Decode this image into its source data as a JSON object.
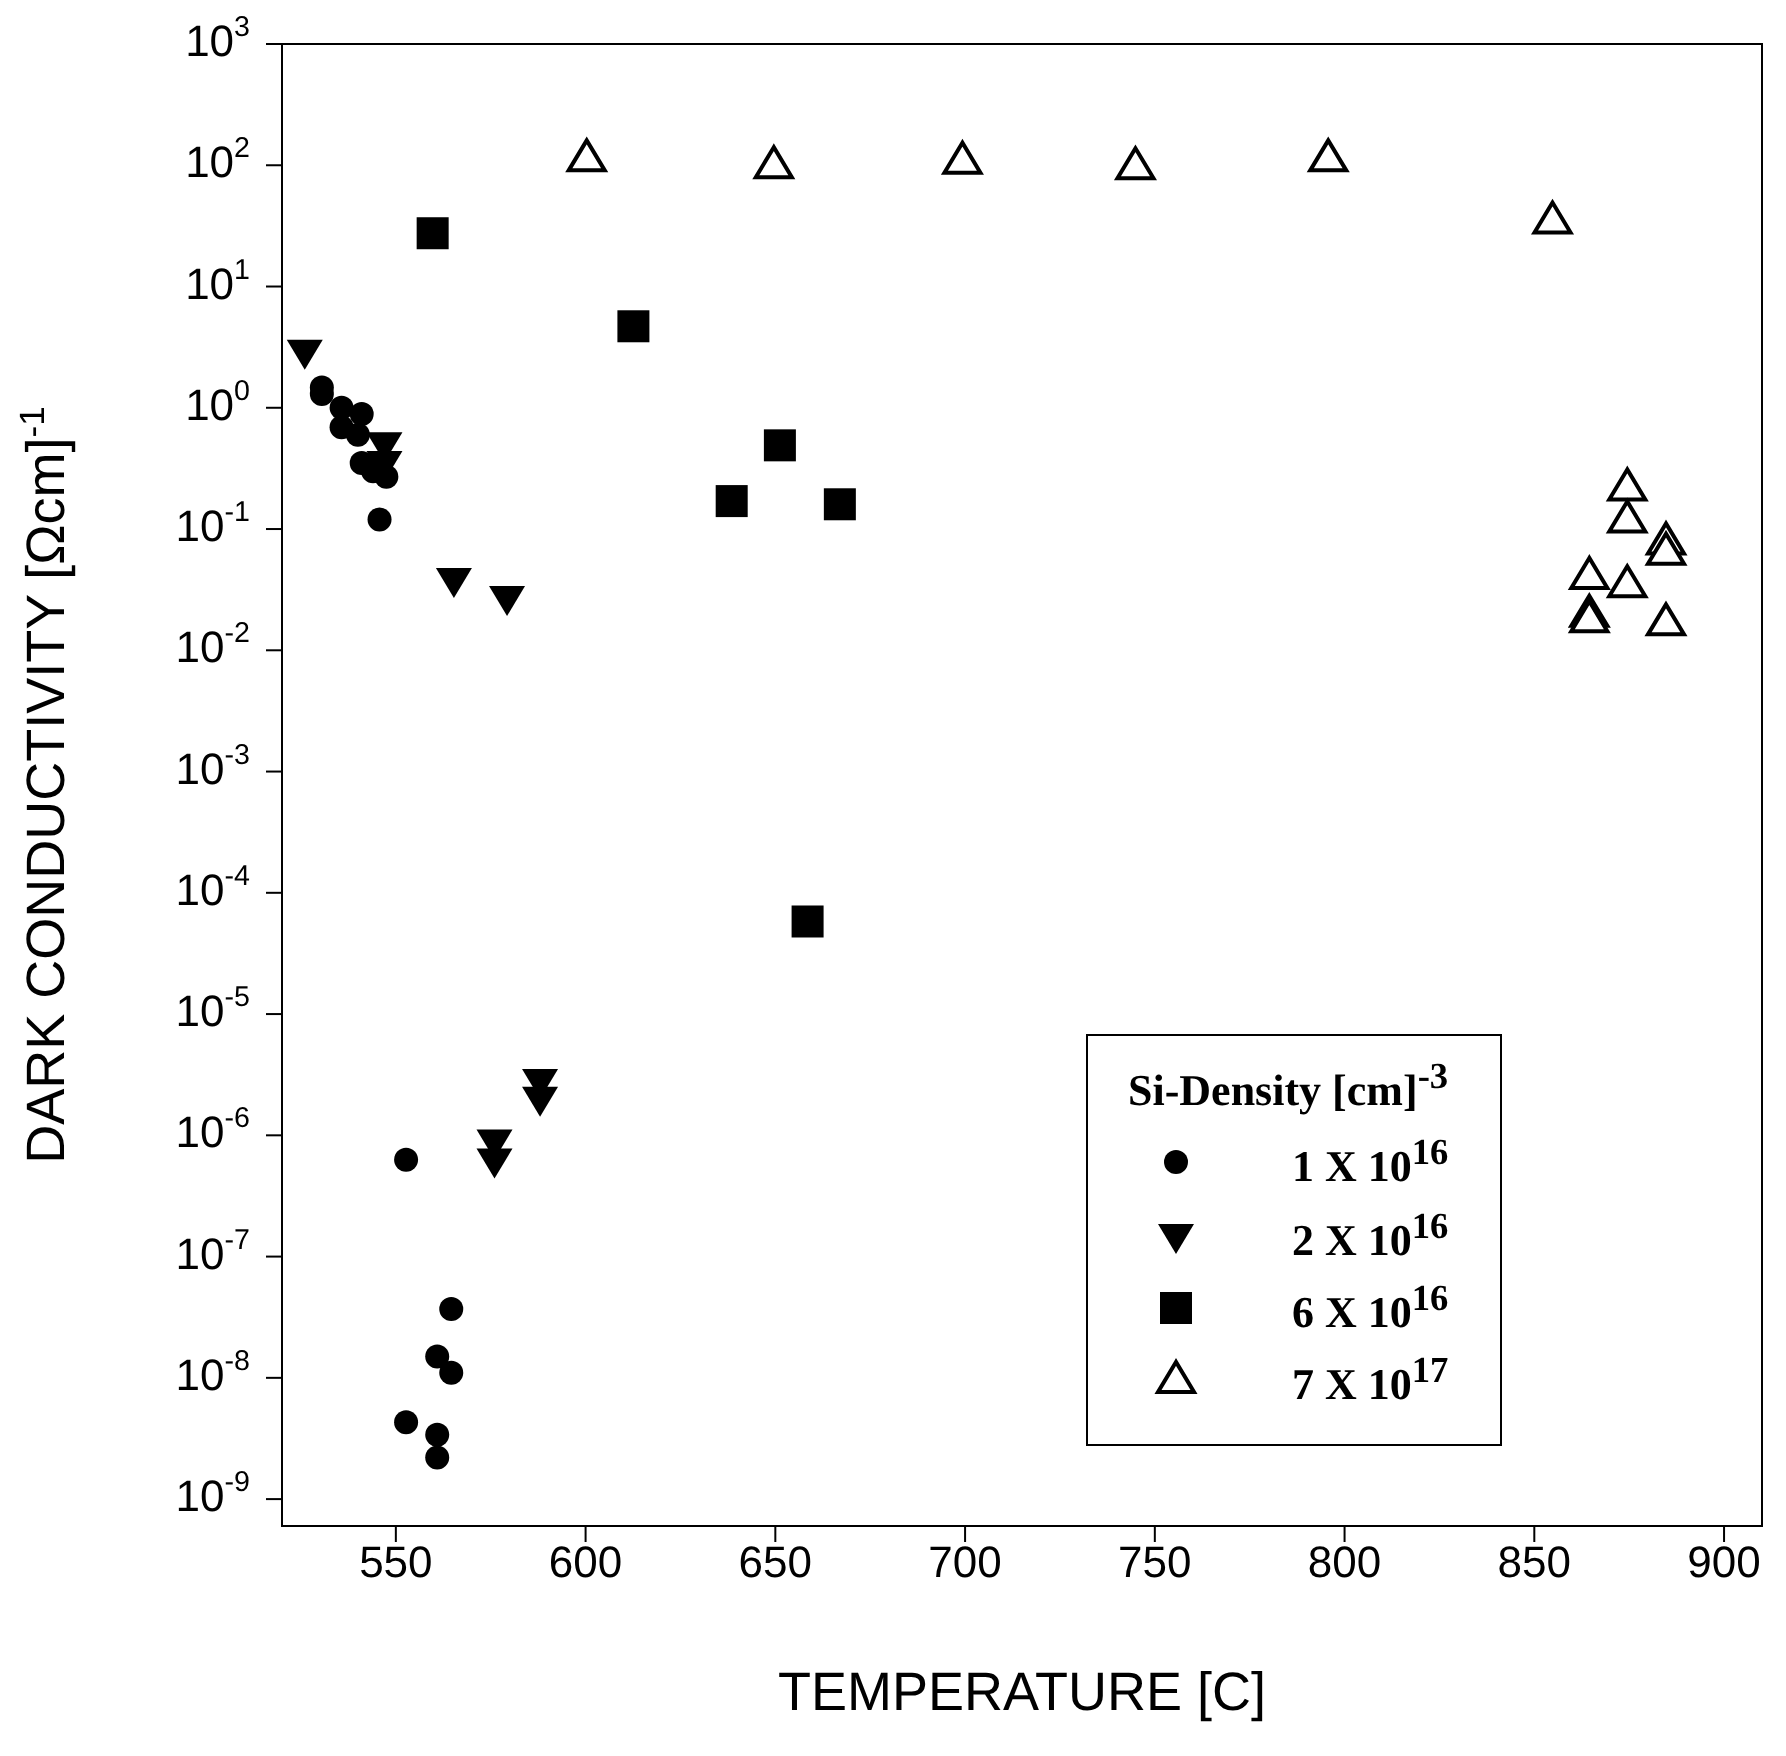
{
  "chart_data": {
    "type": "scatter",
    "xlabel": "TEMPERATURE [C]",
    "ylabel": "DARK CONDUCTIVITY [Ωcm]$^{-1}$",
    "legend_title": "Si-Density [cm]$^{-3}$",
    "log": "y",
    "grid": false,
    "legend": "bottom right",
    "xlim": [
      520,
      910
    ],
    "xticks": [
      550,
      600,
      650,
      700,
      750,
      800,
      850,
      900
    ],
    "ylim": [
      6e-10,
      1000
    ],
    "yticks": [
      {
        "value": 1e-09,
        "label": "10$^{-9}$"
      },
      {
        "value": 1e-08,
        "label": "10$^{-8}$"
      },
      {
        "value": 1e-07,
        "label": "10$^{-7}$"
      },
      {
        "value": 1e-06,
        "label": "10$^{-6}$"
      },
      {
        "value": 1e-05,
        "label": "10$^{-5}$"
      },
      {
        "value": 0.0001,
        "label": "10$^{-4}$"
      },
      {
        "value": 0.001,
        "label": "10$^{-3}$"
      },
      {
        "value": 0.01,
        "label": "10$^{-2}$"
      },
      {
        "value": 0.1,
        "label": "10$^{-1}$"
      },
      {
        "value": 1,
        "label": "10$^{0}$"
      },
      {
        "value": 10,
        "label": "10$^{1}$"
      },
      {
        "value": 100,
        "label": "10$^{2}$"
      },
      {
        "value": 1000,
        "label": "10$^{3}$"
      }
    ],
    "series": [
      {
        "name": "1 X 10$^{16}$",
        "color": "#000000",
        "marker": "circle",
        "x": [
          530.5,
          530.5,
          535.7,
          535.7,
          540,
          541,
          541,
          544,
          547.5,
          545.7,
          552.7,
          564.6,
          560.9,
          564.6,
          552.7,
          560.9,
          560.9
        ],
        "values": [
          1.47,
          1.3,
          1.0,
          0.69,
          0.6,
          0.89,
          0.35,
          0.3,
          0.27,
          0.12,
          6.3e-07,
          3.7e-08,
          1.5e-08,
          1.1e-08,
          4.3e-09,
          3.4e-09,
          2.2e-09
        ]
      },
      {
        "name": "2 X 10$^{16}$",
        "color": "#000000",
        "marker": "triangle-down",
        "x": [
          526,
          547,
          547,
          565.3,
          579.3,
          576,
          576,
          588,
          588
        ],
        "values": [
          2.9,
          0.5,
          0.35,
          0.038,
          0.027,
          8.9e-07,
          6.2e-07,
          2.8e-06,
          2e-06
        ]
      },
      {
        "name": "6 X 10$^{16}$",
        "color": "#000000",
        "marker": "square",
        "x": [
          559.7,
          612.6,
          651.2,
          638.5,
          667,
          658.5
        ],
        "values": [
          27.5,
          4.7,
          0.49,
          0.17,
          0.16,
          5.8e-05
        ]
      },
      {
        "name": "7 X 10$^{17}$",
        "color": "#000000",
        "marker": "triangle-open",
        "x": [
          600.3,
          649.6,
          699.3,
          744.9,
          795.7,
          854.8,
          874.5,
          874.5,
          884.7,
          884.7,
          864.5,
          874.5,
          864.5,
          864.5,
          884.7
        ],
        "values": [
          114,
          100,
          109,
          98,
          114,
          35,
          0.22,
          0.12,
          0.079,
          0.065,
          0.041,
          0.035,
          0.02,
          0.018,
          0.017
        ]
      }
    ]
  }
}
